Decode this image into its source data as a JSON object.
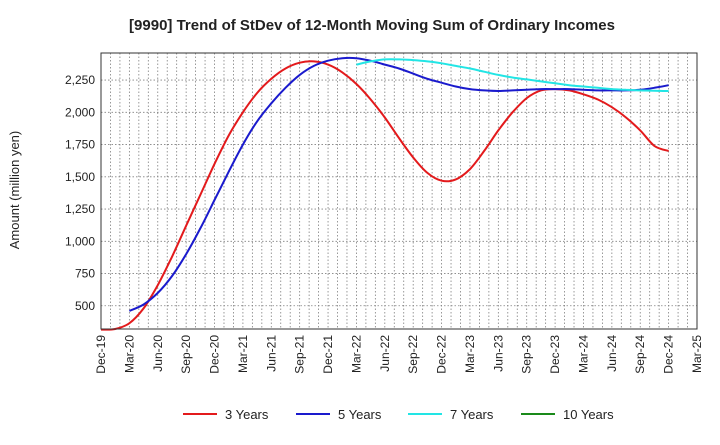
{
  "chart_data": {
    "type": "line",
    "title": "[9990]  Trend of StDev of 12-Month Moving Sum of Ordinary Incomes",
    "xlabel": "",
    "ylabel": "Amount (million yen)",
    "x_ticks": [
      "Dec-19",
      "Mar-20",
      "Jun-20",
      "Sep-20",
      "Dec-20",
      "Mar-21",
      "Jun-21",
      "Sep-21",
      "Dec-21",
      "Mar-22",
      "Jun-22",
      "Sep-22",
      "Dec-22",
      "Mar-23",
      "Jun-23",
      "Sep-23",
      "Dec-23",
      "Mar-24",
      "Jun-24",
      "Sep-24",
      "Dec-24",
      "Mar-25"
    ],
    "y_ticks": [
      500,
      750,
      1000,
      1250,
      1500,
      1750,
      2000,
      2250
    ],
    "y_tick_labels": [
      "500",
      "750",
      "1,000",
      "1,250",
      "1,500",
      "1,750",
      "2,000",
      "2,250"
    ],
    "ylim": [
      320,
      2460
    ],
    "grid": true,
    "legend_position": "bottom",
    "series": [
      {
        "name": "3 Years",
        "color": "#e31a1c",
        "x_index": [
          0,
          0.5,
          1,
          1.5,
          2,
          2.5,
          3,
          3.5,
          4,
          4.5,
          5,
          5.5,
          6,
          6.5,
          7,
          7.5,
          8,
          8.5,
          9,
          9.5,
          10,
          10.5,
          11,
          11.5,
          12,
          12.5,
          13,
          13.5,
          14,
          14.5,
          15,
          15.5,
          16,
          16.5,
          17,
          17.5,
          18,
          18.5,
          19,
          19.5,
          20
        ],
        "values": [
          315,
          320,
          365,
          480,
          660,
          880,
          1120,
          1360,
          1600,
          1820,
          2000,
          2150,
          2260,
          2340,
          2385,
          2395,
          2370,
          2310,
          2220,
          2100,
          1960,
          1800,
          1650,
          1530,
          1470,
          1480,
          1560,
          1700,
          1860,
          2000,
          2110,
          2170,
          2180,
          2170,
          2140,
          2100,
          2040,
          1960,
          1860,
          1740,
          1700
        ]
      },
      {
        "name": "5 Years",
        "color": "#1a1acd",
        "x_index": [
          1,
          1.5,
          2,
          2.5,
          3,
          3.5,
          4,
          4.5,
          5,
          5.5,
          6,
          6.5,
          7,
          7.5,
          8,
          8.5,
          9,
          9.5,
          10,
          10.5,
          11,
          11.5,
          12,
          12.5,
          13,
          13.5,
          14,
          14.5,
          15,
          15.5,
          16,
          16.5,
          17,
          17.5,
          18,
          18.5,
          19,
          19.5,
          20
        ],
        "values": [
          460,
          510,
          600,
          730,
          900,
          1100,
          1320,
          1540,
          1750,
          1930,
          2070,
          2190,
          2290,
          2360,
          2400,
          2420,
          2420,
          2400,
          2370,
          2340,
          2300,
          2260,
          2230,
          2200,
          2180,
          2170,
          2165,
          2170,
          2175,
          2180,
          2180,
          2180,
          2175,
          2170,
          2170,
          2170,
          2175,
          2190,
          2210
        ]
      },
      {
        "name": "7 Years",
        "color": "#22e5e5",
        "x_index": [
          9,
          9.5,
          10,
          10.5,
          11,
          11.5,
          12,
          12.5,
          13,
          13.5,
          14,
          14.5,
          15,
          15.5,
          16,
          16.5,
          17,
          17.5,
          18,
          18.5,
          19,
          19.5,
          20
        ],
        "values": [
          2370,
          2395,
          2410,
          2410,
          2405,
          2395,
          2380,
          2360,
          2340,
          2315,
          2290,
          2270,
          2255,
          2240,
          2225,
          2210,
          2200,
          2190,
          2180,
          2175,
          2170,
          2168,
          2165
        ]
      },
      {
        "name": "10 Years",
        "color": "#1a8a1a",
        "x_index": [],
        "values": []
      }
    ]
  }
}
